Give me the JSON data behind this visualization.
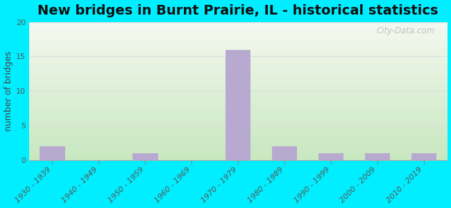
{
  "title": "New bridges in Burnt Prairie, IL - historical statistics",
  "ylabel": "number of bridges",
  "categories": [
    "1930 - 1939",
    "1940 - 1949",
    "1950 - 1959",
    "1960 - 1969",
    "1970 - 1979",
    "1980 - 1989",
    "1990 - 1999",
    "2000 - 2009",
    "2010 - 2019"
  ],
  "values": [
    2,
    0,
    1,
    0,
    16,
    2,
    1,
    1,
    1
  ],
  "bar_color": "#b8a9d0",
  "ylim": [
    0,
    20
  ],
  "yticks": [
    0,
    5,
    10,
    15,
    20
  ],
  "bg_outer": "#00eeff",
  "bg_plot_top": "#f5f8f0",
  "bg_plot_bottom": "#c8e8c0",
  "grid_color": "#dddddd",
  "title_fontsize": 14,
  "axis_label_fontsize": 9,
  "tick_fontsize": 8,
  "watermark": "City-Data.com"
}
